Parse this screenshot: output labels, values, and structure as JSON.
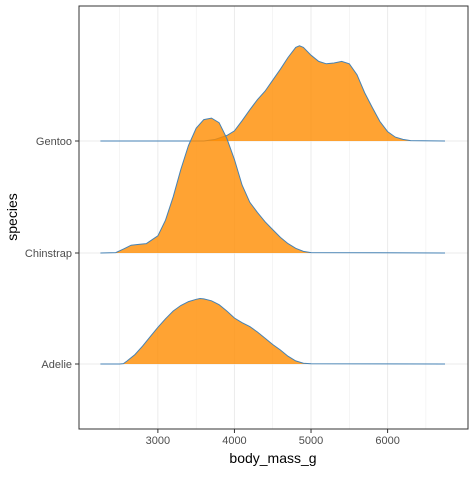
{
  "chart_data": {
    "type": "area",
    "subtype": "ridgeline",
    "xlabel": "body_mass_g",
    "ylabel": "species",
    "xlim": [
      1970,
      7050
    ],
    "x_ticks": [
      3000,
      4000,
      5000,
      6000
    ],
    "categories": [
      "Adelie",
      "Chinstrap",
      "Gentoo"
    ],
    "grid": true,
    "legend": "none",
    "fill_color": "#ff8c00",
    "fill_opacity": 0.8,
    "line_color": "#4682b4",
    "series": [
      {
        "name": "Adelie",
        "points": [
          [
            2250,
            0
          ],
          [
            2500,
            0
          ],
          [
            2550,
            0.005
          ],
          [
            2600,
            0.04
          ],
          [
            2700,
            0.12
          ],
          [
            2800,
            0.23
          ],
          [
            2900,
            0.35
          ],
          [
            3000,
            0.47
          ],
          [
            3100,
            0.58
          ],
          [
            3200,
            0.68
          ],
          [
            3300,
            0.75
          ],
          [
            3400,
            0.8
          ],
          [
            3500,
            0.83
          ],
          [
            3550,
            0.84
          ],
          [
            3600,
            0.835
          ],
          [
            3700,
            0.81
          ],
          [
            3800,
            0.76
          ],
          [
            3900,
            0.68
          ],
          [
            4000,
            0.59
          ],
          [
            4100,
            0.53
          ],
          [
            4200,
            0.48
          ],
          [
            4300,
            0.41
          ],
          [
            4400,
            0.33
          ],
          [
            4500,
            0.25
          ],
          [
            4600,
            0.18
          ],
          [
            4700,
            0.1
          ],
          [
            4800,
            0.04
          ],
          [
            4900,
            0.01
          ],
          [
            5000,
            0.003
          ],
          [
            6750,
            0
          ]
        ]
      },
      {
        "name": "Chinstrap",
        "points": [
          [
            2250,
            0
          ],
          [
            2450,
            0.005
          ],
          [
            2550,
            0.05
          ],
          [
            2650,
            0.1
          ],
          [
            2750,
            0.11
          ],
          [
            2850,
            0.12
          ],
          [
            3000,
            0.22
          ],
          [
            3100,
            0.42
          ],
          [
            3200,
            0.72
          ],
          [
            3300,
            1.07
          ],
          [
            3400,
            1.38
          ],
          [
            3500,
            1.6
          ],
          [
            3600,
            1.71
          ],
          [
            3700,
            1.73
          ],
          [
            3800,
            1.67
          ],
          [
            3900,
            1.47
          ],
          [
            4000,
            1.2
          ],
          [
            4100,
            0.87
          ],
          [
            4200,
            0.65
          ],
          [
            4300,
            0.52
          ],
          [
            4400,
            0.4
          ],
          [
            4500,
            0.3
          ],
          [
            4600,
            0.2
          ],
          [
            4700,
            0.12
          ],
          [
            4800,
            0.06
          ],
          [
            4900,
            0.02
          ],
          [
            5000,
            0.005
          ],
          [
            6750,
            0
          ]
        ]
      },
      {
        "name": "Gentoo",
        "points": [
          [
            2250,
            0
          ],
          [
            3600,
            0
          ],
          [
            3750,
            0.02
          ],
          [
            3900,
            0.07
          ],
          [
            4000,
            0.13
          ],
          [
            4100,
            0.26
          ],
          [
            4200,
            0.4
          ],
          [
            4300,
            0.53
          ],
          [
            4400,
            0.64
          ],
          [
            4500,
            0.78
          ],
          [
            4600,
            0.92
          ],
          [
            4700,
            1.07
          ],
          [
            4800,
            1.2
          ],
          [
            4850,
            1.22
          ],
          [
            4900,
            1.2
          ],
          [
            5000,
            1.1
          ],
          [
            5100,
            1.02
          ],
          [
            5200,
            0.99
          ],
          [
            5300,
            1.0
          ],
          [
            5400,
            1.02
          ],
          [
            5500,
            0.99
          ],
          [
            5600,
            0.85
          ],
          [
            5700,
            0.62
          ],
          [
            5800,
            0.43
          ],
          [
            5900,
            0.25
          ],
          [
            6000,
            0.12
          ],
          [
            6100,
            0.05
          ],
          [
            6200,
            0.02
          ],
          [
            6300,
            0.005
          ],
          [
            6750,
            0
          ]
        ]
      }
    ]
  }
}
